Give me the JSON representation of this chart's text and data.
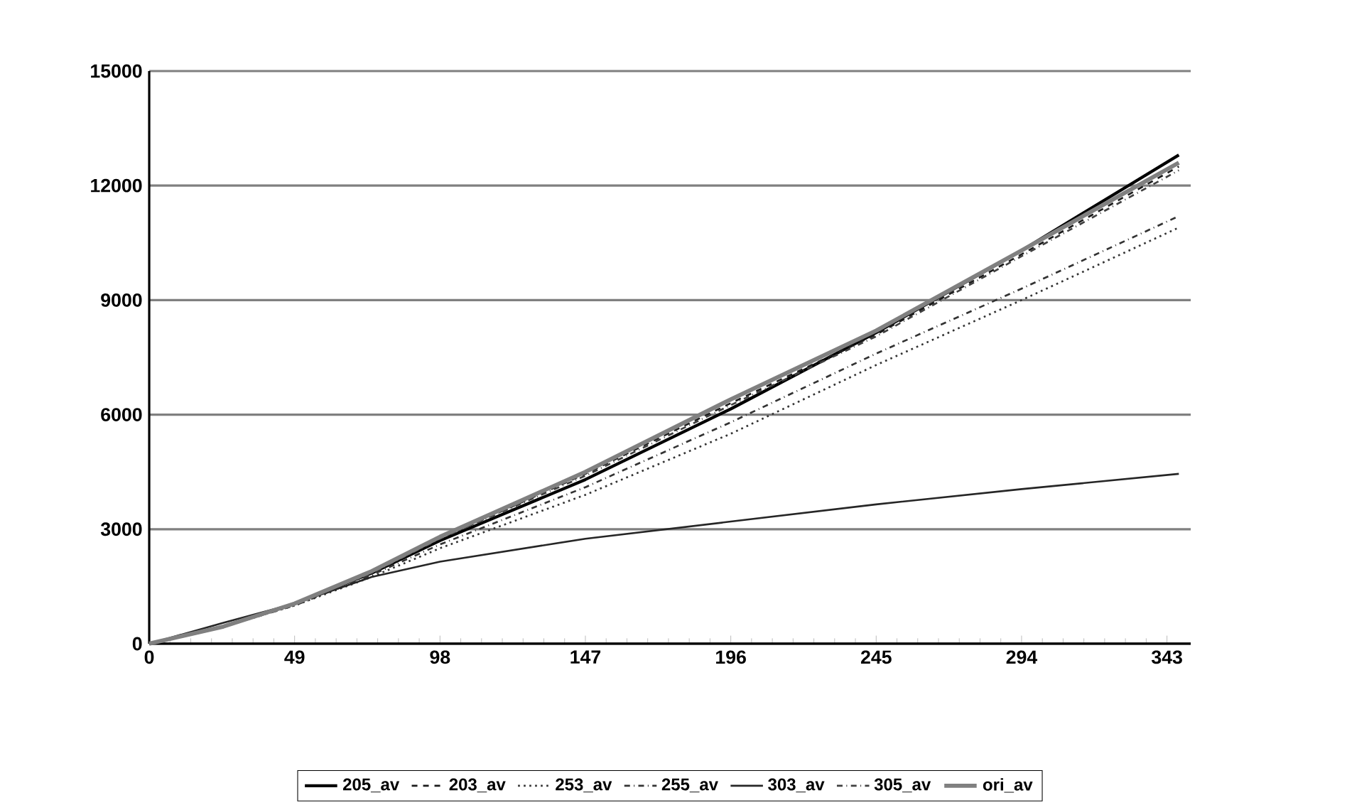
{
  "chart_data": {
    "type": "line",
    "x": [
      0,
      25,
      49,
      75,
      98,
      147,
      196,
      245,
      294,
      347
    ],
    "series": [
      {
        "name": "205_av",
        "color": "#000000",
        "line_style": "solid",
        "values": [
          0,
          450,
          1050,
          1850,
          2700,
          4300,
          6150,
          8150,
          10300,
          12800
        ]
      },
      {
        "name": "203_av",
        "color": "#1a1a1a",
        "line_style": "dashed",
        "values": [
          0,
          450,
          1050,
          1850,
          2750,
          4450,
          6300,
          8100,
          10200,
          12500
        ]
      },
      {
        "name": "253_av",
        "color": "#333333",
        "line_style": "dotted",
        "values": [
          0,
          450,
          1000,
          1750,
          2500,
          3900,
          5500,
          7300,
          9000,
          10900
        ]
      },
      {
        "name": "255_av",
        "color": "#333333",
        "line_style": "dashdot",
        "values": [
          0,
          450,
          1000,
          1800,
          2600,
          4100,
          5800,
          7600,
          9300,
          11200
        ]
      },
      {
        "name": "303_av",
        "color": "#262626",
        "line_style": "solid",
        "values": [
          0,
          550,
          1050,
          1750,
          2150,
          2750,
          3200,
          3650,
          4050,
          4450
        ]
      },
      {
        "name": "305_av",
        "color": "#404040",
        "line_style": "dashdot",
        "values": [
          0,
          450,
          1050,
          1850,
          2750,
          4400,
          6250,
          8050,
          10150,
          12400
        ]
      },
      {
        "name": "ori_av",
        "color": "#808080",
        "line_style": "solid",
        "values": [
          0,
          450,
          1050,
          1900,
          2800,
          4500,
          6400,
          8200,
          10300,
          12600
        ]
      }
    ],
    "xlim": [
      0,
      351
    ],
    "xticks": [
      0,
      49,
      98,
      147,
      196,
      245,
      294,
      343
    ],
    "ylim": [
      0,
      15000
    ],
    "yticks": [
      0,
      3000,
      6000,
      9000,
      12000,
      15000
    ],
    "grid": "y",
    "legend": "bottom",
    "marker": "none"
  }
}
